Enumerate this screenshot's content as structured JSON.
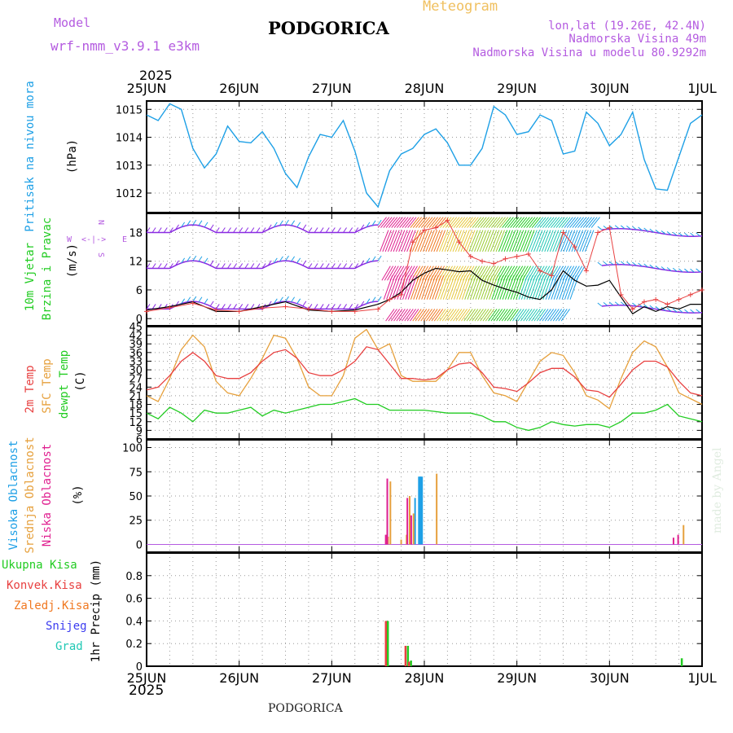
{
  "header": {
    "model_label": "Model",
    "model_name": "wrf-nmm_v3.9.1 e3km",
    "station": "PODGORICA",
    "meteogram_label": "Meteogram",
    "lonlat": "lon,lat (19.26E, 42.4N)",
    "altitude": "Nadmorska Visina 49m",
    "model_altitude": "Nadmorska Visina u modelu 80.9292m",
    "year_top": "2025",
    "year_bottom": "2025",
    "footer_station": "PODGORICA",
    "watermark": "made by Angel"
  },
  "colors": {
    "pressure": "#1ea0e6",
    "temp2m": "#e84040",
    "sfc": "#e6a03c",
    "dewpt": "#22cc22",
    "high_cloud": "#1ea0e6",
    "mid_cloud": "#e6a03c",
    "low_cloud": "#e02090",
    "total_rain": "#22cc22",
    "conv_rain": "#e84040",
    "freezing": "#f07820",
    "snow": "#3c3cf0",
    "hail": "#20c8b4",
    "wind_purple": "#8a2be2",
    "wind_speed": "#000000",
    "gust": "#e84040"
  },
  "chart_data": [
    {
      "type": "line",
      "panel": "pressure",
      "ylabel_lines": [
        "Pritisak na nivou mora",
        "(hPa)"
      ],
      "ylim": [
        1011.3,
        1015.3
      ],
      "yticks": [
        1012,
        1013,
        1014,
        1015
      ],
      "x_dates": [
        "25JUN",
        "26JUN",
        "27JUN",
        "28JUN",
        "29JUN",
        "30JUN",
        "1JUL"
      ],
      "series": [
        {
          "name": "Pritisak na nivou mora",
          "x_hours": [
            0,
            3,
            6,
            9,
            12,
            15,
            18,
            21,
            24,
            27,
            30,
            33,
            36,
            39,
            42,
            45,
            48,
            51,
            54,
            57,
            60,
            63,
            66,
            69,
            72,
            75,
            78,
            81,
            84,
            87,
            90,
            93,
            96,
            99,
            102,
            105,
            108,
            111,
            114,
            117,
            120,
            123,
            126,
            129,
            132,
            135,
            138,
            141,
            144
          ],
          "values": [
            1014.8,
            1014.6,
            1015.2,
            1015.0,
            1013.6,
            1012.9,
            1013.4,
            1014.4,
            1013.85,
            1013.8,
            1014.2,
            1013.6,
            1012.7,
            1012.2,
            1013.3,
            1014.1,
            1014.0,
            1014.6,
            1013.5,
            1012.0,
            1011.5,
            1012.8,
            1013.4,
            1013.6,
            1014.1,
            1014.3,
            1013.8,
            1013.0,
            1013.0,
            1013.6,
            1015.1,
            1014.8,
            1014.1,
            1014.2,
            1014.8,
            1014.6,
            1013.4,
            1013.5,
            1014.9,
            1014.5,
            1013.7,
            1014.1,
            1014.9,
            1013.2,
            1012.15,
            1012.1,
            1013.3,
            1014.5,
            1014.8
          ]
        }
      ]
    },
    {
      "type": "line",
      "panel": "wind",
      "ylabel_lines": [
        "10m Vjetar",
        "Brzina i Pravac",
        "(m/s)"
      ],
      "compass": {
        "n": "N",
        "s": "S",
        "e": "E",
        "w": "W"
      },
      "ylim": [
        -1.5,
        22
      ],
      "yticks": [
        0,
        6,
        12,
        18
      ],
      "series": [
        {
          "name": "Brzina vjetra",
          "x_hours": [
            0,
            6,
            12,
            18,
            24,
            30,
            36,
            42,
            48,
            54,
            60,
            63,
            66,
            69,
            72,
            75,
            78,
            81,
            84,
            87,
            90,
            93,
            96,
            99,
            102,
            105,
            108,
            111,
            114,
            117,
            120,
            123,
            126,
            129,
            132,
            135,
            138,
            141,
            144
          ],
          "values": [
            1.8,
            2.5,
            3.5,
            1.5,
            1.5,
            2.5,
            3.5,
            1.8,
            1.5,
            1.8,
            3.0,
            4.0,
            5.5,
            8.0,
            9.5,
            10.5,
            10.2,
            9.8,
            10.0,
            8.0,
            7.0,
            6.2,
            5.5,
            4.5,
            4.0,
            6.0,
            10.0,
            8.0,
            6.8,
            7.0,
            8.0,
            4.5,
            1.0,
            2.5,
            1.5,
            2.5,
            2.0,
            3.0,
            3.0
          ]
        },
        {
          "name": "Udari vjetra",
          "x_hours": [
            0,
            6,
            12,
            18,
            24,
            30,
            36,
            42,
            48,
            54,
            60,
            63,
            66,
            69,
            72,
            75,
            78,
            81,
            84,
            87,
            90,
            93,
            96,
            99,
            102,
            105,
            108,
            111,
            114,
            117,
            120,
            123,
            126,
            129,
            132,
            135,
            138,
            141,
            144
          ],
          "values": [
            1.5,
            2.3,
            3.2,
            1.8,
            1.5,
            2.2,
            2.5,
            2.0,
            1.5,
            1.5,
            2.0,
            4.0,
            5.0,
            16.0,
            18.5,
            19.0,
            20.5,
            16.0,
            13.0,
            12.0,
            11.5,
            12.5,
            13.0,
            13.5,
            10.0,
            9.0,
            18.0,
            15.0,
            10.0,
            18.0,
            19.0,
            5.0,
            2.0,
            3.5,
            4.0,
            3.0,
            4.0,
            5.0,
            6.0
          ]
        }
      ]
    },
    {
      "type": "line",
      "panel": "temperature",
      "ylabel_lines": [
        "2m Temp",
        "SFC Temp",
        "dewpt Temp",
        "(C)"
      ],
      "ylim": [
        6,
        45
      ],
      "yticks": [
        6,
        9,
        12,
        15,
        18,
        21,
        24,
        27,
        30,
        33,
        36,
        39,
        42,
        45
      ],
      "series": [
        {
          "name": "2m Temp",
          "x_hours": [
            0,
            3,
            6,
            9,
            12,
            15,
            18,
            21,
            24,
            27,
            30,
            33,
            36,
            39,
            42,
            45,
            48,
            51,
            54,
            57,
            60,
            63,
            66,
            69,
            72,
            75,
            78,
            81,
            84,
            87,
            90,
            93,
            96,
            99,
            102,
            105,
            108,
            111,
            114,
            117,
            120,
            123,
            126,
            129,
            132,
            135,
            138,
            141,
            144
          ],
          "values": [
            23,
            24,
            28,
            33,
            36,
            33,
            28,
            27,
            27,
            29,
            33,
            36,
            37,
            34,
            29,
            28,
            28,
            30,
            33,
            38,
            37,
            32,
            27,
            27,
            26.5,
            27,
            30,
            32,
            32.5,
            29,
            24,
            23.5,
            22.5,
            25.5,
            29,
            30.5,
            30.5,
            27.5,
            23,
            22.5,
            20.5,
            25,
            30,
            33,
            33,
            31,
            26,
            22,
            21
          ]
        },
        {
          "name": "SFC Temp",
          "x_hours": [
            0,
            3,
            6,
            9,
            12,
            15,
            18,
            21,
            24,
            27,
            30,
            33,
            36,
            39,
            42,
            45,
            48,
            51,
            54,
            57,
            60,
            63,
            66,
            69,
            72,
            75,
            78,
            81,
            84,
            87,
            90,
            93,
            96,
            99,
            102,
            105,
            108,
            111,
            114,
            117,
            120,
            123,
            126,
            129,
            132,
            135,
            138,
            141,
            144
          ],
          "values": [
            21,
            19,
            27,
            37,
            42,
            38,
            26,
            22,
            21,
            27,
            34,
            42,
            41,
            34,
            24,
            21,
            21,
            28,
            41,
            44,
            37,
            39,
            28,
            26,
            26,
            26,
            30,
            36,
            36,
            28,
            22,
            21,
            19,
            26,
            33,
            36,
            35,
            29,
            21,
            19.5,
            16.5,
            27,
            36,
            40,
            38,
            31,
            22,
            20,
            18
          ]
        },
        {
          "name": "dewpt Temp",
          "x_hours": [
            0,
            3,
            6,
            9,
            12,
            15,
            18,
            21,
            24,
            27,
            30,
            33,
            36,
            39,
            42,
            45,
            48,
            51,
            54,
            57,
            60,
            63,
            66,
            69,
            72,
            75,
            78,
            81,
            84,
            87,
            90,
            93,
            96,
            99,
            102,
            105,
            108,
            111,
            114,
            117,
            120,
            123,
            126,
            129,
            132,
            135,
            138,
            141,
            144
          ],
          "values": [
            15,
            13,
            17,
            15,
            12,
            16,
            15,
            15,
            16,
            17,
            14,
            16,
            15,
            16,
            17,
            18,
            18,
            19,
            20,
            18,
            18,
            16,
            16,
            16,
            16,
            15.5,
            15,
            15,
            15,
            14,
            12,
            12,
            10,
            9,
            10,
            12,
            11,
            10.5,
            11,
            11,
            10,
            12,
            15,
            15,
            16,
            18,
            14,
            13,
            12
          ]
        }
      ]
    },
    {
      "type": "bar",
      "panel": "cloud",
      "ylabel_lines": [
        "Visoka Oblacnost",
        "Srednja Oblacnost",
        "Niska Oblacnost",
        "(%)"
      ],
      "ylim": [
        -8,
        108
      ],
      "yticks": [
        0,
        25,
        50,
        75,
        100
      ],
      "series": [
        {
          "name": "Visoka Oblacnost",
          "x_hours": [
            62.4,
            69.6,
            70.8,
            71.2
          ],
          "values": [
            64,
            48,
            70,
            70
          ]
        },
        {
          "name": "Srednja Oblacnost",
          "x_hours": [
            62.6,
            63.2,
            66,
            67.4,
            68.2,
            69.2,
            75.2,
            139.2
          ],
          "values": [
            8,
            65,
            5,
            10,
            50,
            32,
            73,
            20
          ]
        },
        {
          "name": "Niska Oblacnost",
          "x_hours": [
            62,
            62.4,
            67.6,
            68.6,
            136.6,
            137.8
          ],
          "values": [
            10,
            68,
            48,
            30,
            7,
            10
          ]
        }
      ]
    },
    {
      "type": "bar",
      "panel": "precip",
      "ylabel_lines": [
        "1hr Precip (mm)"
      ],
      "ylim": [
        0,
        1
      ],
      "yticks": [
        0,
        0.2,
        0.4,
        0.6,
        0.8
      ],
      "legend": [
        "Ukupna Kisa",
        "Konvek.Kisa",
        "Zaledj.Kisa",
        "Snijeg",
        "Grad"
      ],
      "series": [
        {
          "name": "Ukupna Kisa",
          "x_hours": [
            62.6,
            67.8,
            68.6,
            138.8
          ],
          "values": [
            0.4,
            0.18,
            0.05,
            0.07
          ]
        },
        {
          "name": "Konvek.Kisa",
          "x_hours": [
            62.4,
            67.5,
            68.4
          ],
          "values": [
            0.4,
            0.18,
            0.04
          ]
        }
      ]
    }
  ]
}
